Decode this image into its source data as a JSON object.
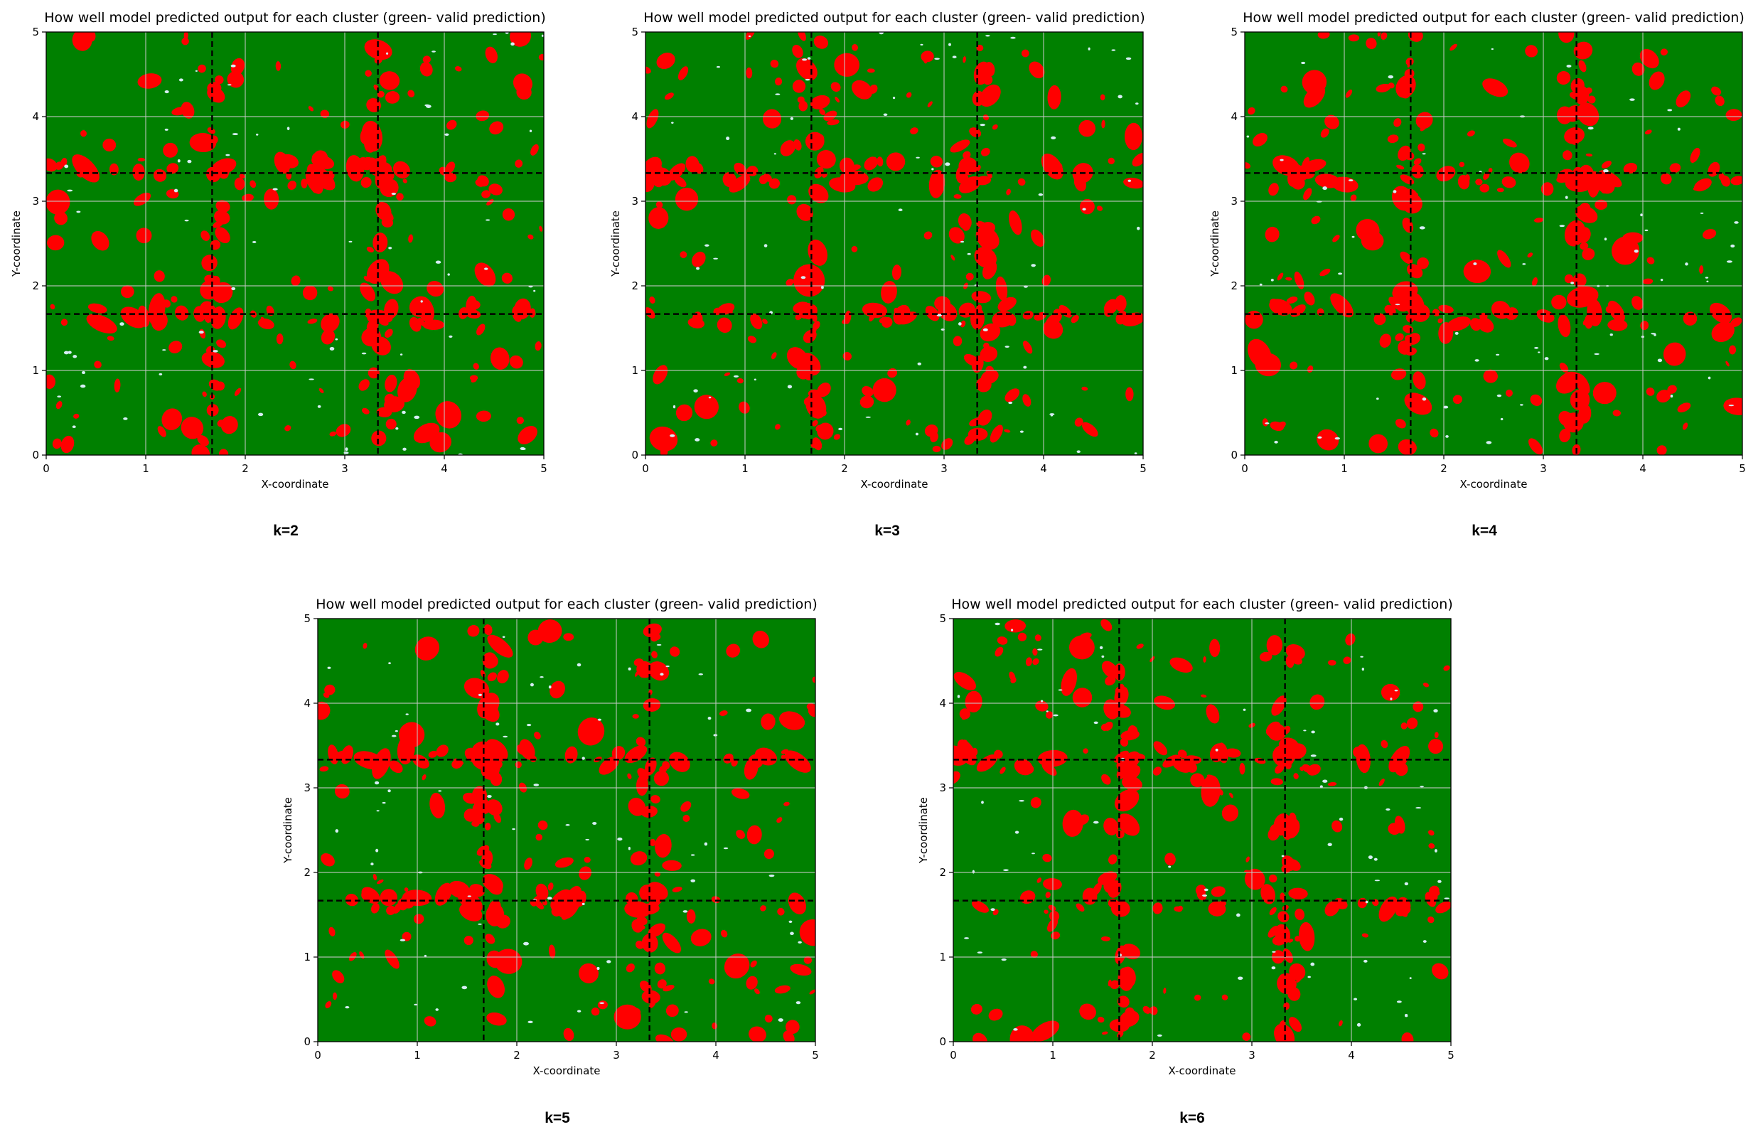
{
  "chart_data": [
    {
      "type": "heatmap",
      "title": "How well model predicted output for each cluster (green- valid prediction)",
      "xlabel": "X-coordinate",
      "ylabel": "Y-coordinate",
      "xlim": [
        0,
        5
      ],
      "ylim": [
        0,
        5
      ],
      "xticks": [
        "0",
        "1",
        "2",
        "3",
        "4",
        "5"
      ],
      "yticks": [
        "0",
        "1",
        "2",
        "3",
        "4",
        "5"
      ],
      "grid": true,
      "cluster_boundaries": {
        "x": [
          1.667,
          3.333
        ],
        "y": [
          1.667,
          3.333
        ]
      },
      "colors": {
        "valid": "#008000",
        "invalid": "#ff0000",
        "unknown": "#d6eef5"
      },
      "caption": "k=2",
      "seed": 11
    },
    {
      "type": "heatmap",
      "title": "How well model predicted output for each cluster (green- valid prediction)",
      "xlabel": "X-coordinate",
      "ylabel": "Y-coordinate",
      "xlim": [
        0,
        5
      ],
      "ylim": [
        0,
        5
      ],
      "xticks": [
        "0",
        "1",
        "2",
        "3",
        "4",
        "5"
      ],
      "yticks": [
        "0",
        "1",
        "2",
        "3",
        "4",
        "5"
      ],
      "grid": true,
      "cluster_boundaries": {
        "x": [
          1.667,
          3.333
        ],
        "y": [
          1.667,
          3.333
        ]
      },
      "colors": {
        "valid": "#008000",
        "invalid": "#ff0000",
        "unknown": "#d6eef5"
      },
      "caption": "k=3",
      "seed": 23
    },
    {
      "type": "heatmap",
      "title": "How well model predicted output for each cluster (green- valid prediction)",
      "xlabel": "X-coordinate",
      "ylabel": "Y-coordinate",
      "xlim": [
        0,
        5
      ],
      "ylim": [
        0,
        5
      ],
      "xticks": [
        "0",
        "1",
        "2",
        "3",
        "4",
        "5"
      ],
      "yticks": [
        "0",
        "1",
        "2",
        "3",
        "4",
        "5"
      ],
      "grid": true,
      "cluster_boundaries": {
        "x": [
          1.667,
          3.333
        ],
        "y": [
          1.667,
          3.333
        ]
      },
      "colors": {
        "valid": "#008000",
        "invalid": "#ff0000",
        "unknown": "#d6eef5"
      },
      "caption": "k=4",
      "seed": 37
    },
    {
      "type": "heatmap",
      "title": "How well model predicted output for each cluster (green- valid prediction)",
      "xlabel": "X-coordinate",
      "ylabel": "Y-coordinate",
      "xlim": [
        0,
        5
      ],
      "ylim": [
        0,
        5
      ],
      "xticks": [
        "0",
        "1",
        "2",
        "3",
        "4",
        "5"
      ],
      "yticks": [
        "0",
        "1",
        "2",
        "3",
        "4",
        "5"
      ],
      "grid": true,
      "cluster_boundaries": {
        "x": [
          1.667,
          3.333
        ],
        "y": [
          1.667,
          3.333
        ]
      },
      "colors": {
        "valid": "#008000",
        "invalid": "#ff0000",
        "unknown": "#d6eef5"
      },
      "caption": "k=5",
      "seed": 51
    },
    {
      "type": "heatmap",
      "title": "How well model predicted output for each cluster (green- valid prediction)",
      "xlabel": "X-coordinate",
      "ylabel": "Y-coordinate",
      "xlim": [
        0,
        5
      ],
      "ylim": [
        0,
        5
      ],
      "xticks": [
        "0",
        "1",
        "2",
        "3",
        "4",
        "5"
      ],
      "yticks": [
        "0",
        "1",
        "2",
        "3",
        "4",
        "5"
      ],
      "grid": true,
      "cluster_boundaries": {
        "x": [
          1.667,
          3.333
        ],
        "y": [
          1.667,
          3.333
        ]
      },
      "colors": {
        "valid": "#008000",
        "invalid": "#ff0000",
        "unknown": "#d6eef5"
      },
      "caption": "k=6",
      "seed": 67
    }
  ]
}
